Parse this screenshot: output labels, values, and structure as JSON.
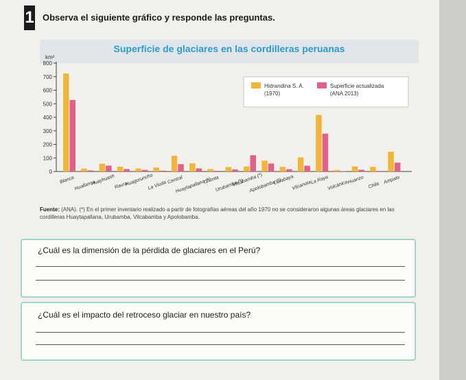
{
  "header": {
    "number": "1",
    "instruction": "Observa el siguiente gráfico y responde las preguntas."
  },
  "chart_data": {
    "type": "bar",
    "title": "Superficie de glaciares en las cordilleras peruanas",
    "ylabel": "km²",
    "ylim": [
      0,
      800
    ],
    "yticks": [
      0,
      100,
      200,
      300,
      400,
      500,
      600,
      700,
      800
    ],
    "grid": false,
    "legend_position": "top-right",
    "categories": [
      "Blanca",
      "Huallanca",
      "Huayhuash",
      "Raura",
      "Huagoruncho",
      "La Viuda",
      "Central",
      "Huaytapallana (*)",
      "Chonta",
      "Urubamba (*)",
      "Vilcabamba (*)",
      "Apolobamba (*)",
      "Carabaya",
      "Vilcanota",
      "La Raya",
      "Volcánica",
      "Huanzo",
      "Chila",
      "Ampato"
    ],
    "series": [
      {
        "name": "Hidrandina S. A. (1970)",
        "color": "#f2b53b",
        "values": [
          723,
          21,
          57,
          35,
          22,
          29,
          116,
          60,
          18,
          33,
          37,
          80,
          34,
          104,
          418,
          11,
          37,
          34,
          146
        ]
      },
      {
        "name": "Superficie actualizada (ANA 2013)",
        "color": "#e0628a",
        "values": [
          528,
          8,
          43,
          18,
          12,
          6,
          54,
          23,
          5,
          15,
          120,
          59,
          17,
          42,
          279,
          3,
          13,
          4,
          65
        ]
      }
    ]
  },
  "source": {
    "label": "Fuente:",
    "text": "(ANA). (*) En el primer inventario realizado a partir de fotografías aéreas del año 1970 no se consideraron algunas áreas glaciares en las cordilleras Huaytapallana, Urubamba, Vilcabamba y Apolobamba."
  },
  "questions": [
    {
      "text": "¿Cuál es la dimensión de la pérdida de glaciares en el Perú?"
    },
    {
      "text": "¿Cuál es el impacto del retroceso glaciar en nuestro país?"
    }
  ]
}
